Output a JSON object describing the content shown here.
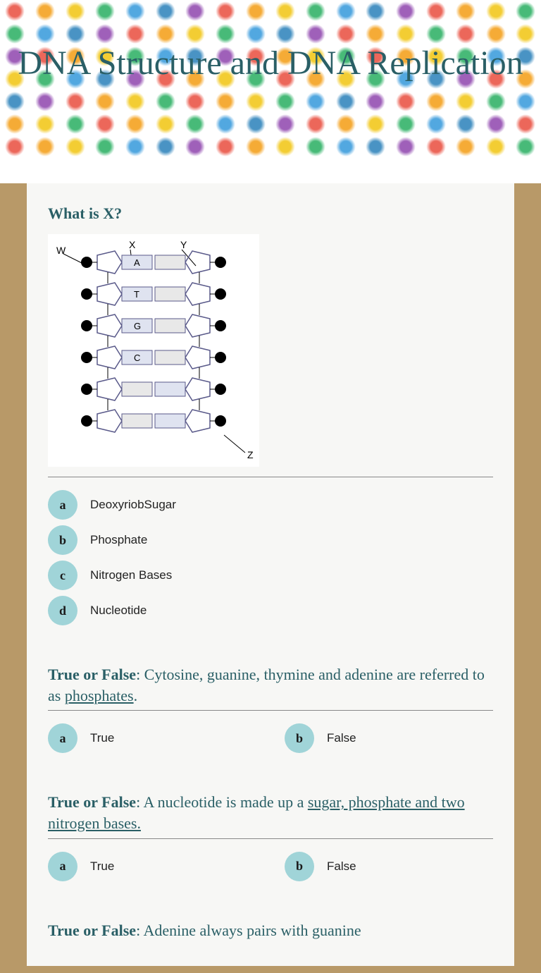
{
  "title": "DNA Structure and DNA Replication",
  "dotColors": [
    "#e84c3d",
    "#f39c12",
    "#f1c40f",
    "#27ae60",
    "#3498db",
    "#2980b9",
    "#8e44ad",
    "#e84c3d",
    "#f39c12",
    "#f1c40f",
    "#27ae60",
    "#3498db",
    "#2980b9",
    "#8e44ad",
    "#e84c3d",
    "#f39c12",
    "#f1c40f",
    "#27ae60"
  ],
  "q1": {
    "title": "What is X?",
    "diagram": {
      "labels": {
        "w": "W",
        "x": "X",
        "y": "Y",
        "z": "Z"
      },
      "bases": [
        "A",
        "T",
        "G",
        "C"
      ],
      "colors": {
        "pentagon": "#eee",
        "base": "#cfd4e6",
        "phosphate": "#000"
      }
    },
    "options": [
      {
        "letter": "a",
        "label": "DeoxyriobSugar"
      },
      {
        "letter": "b",
        "label": "Phosphate"
      },
      {
        "letter": "c",
        "label": "Nitrogen Bases"
      },
      {
        "letter": "d",
        "label": "Nucleotide"
      }
    ]
  },
  "q2": {
    "bold": "True or False",
    "text": ": Cytosine, guanine, thymine and adenine are referred to as ",
    "underlined": "phosphates",
    "after": ".",
    "options": [
      {
        "letter": "a",
        "label": "True"
      },
      {
        "letter": "b",
        "label": "False"
      }
    ]
  },
  "q3": {
    "bold": "True or False",
    "text": ": A nucleotide is made up a ",
    "underlined": "sugar, phosphate and two nitrogen bases. ",
    "after": "",
    "options": [
      {
        "letter": "a",
        "label": "True"
      },
      {
        "letter": "b",
        "label": "False"
      }
    ]
  },
  "q4": {
    "bold": "True or False",
    "text": ": Adenine always pairs with guanine",
    "underlined": "",
    "after": ""
  },
  "badgeColor": "#a0d4d8",
  "titleColor": "#2a5f66"
}
